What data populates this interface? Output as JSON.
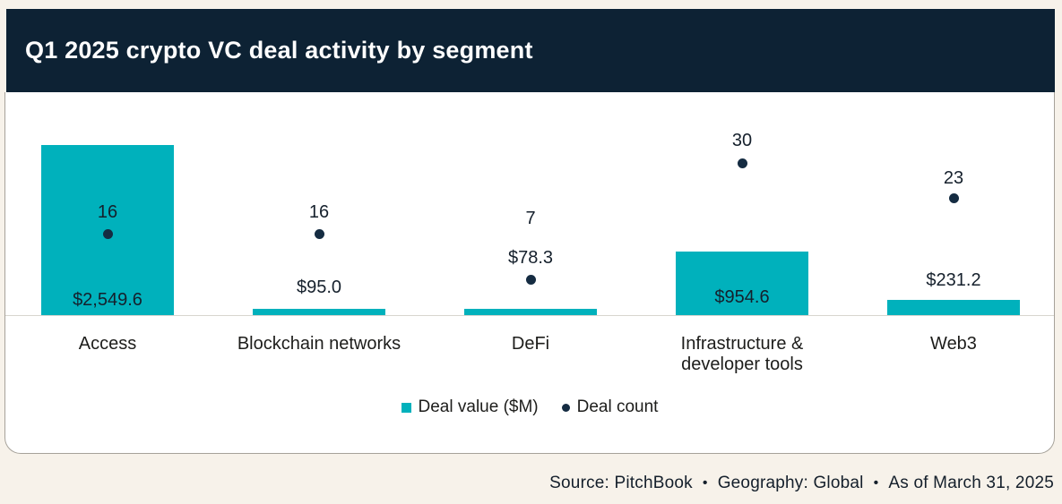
{
  "title": "Q1 2025 crypto VC deal activity by segment",
  "colors": {
    "background": "#f7f2ea",
    "header_navy": "#0d2234",
    "bar_teal": "#00b1bc",
    "dot_navy": "#152c42",
    "card_white": "#ffffff",
    "axis_gray": "#d8d5cf"
  },
  "legend": [
    {
      "label": "Deal value ($M)",
      "marker": "square",
      "color": "#00b1bc"
    },
    {
      "label": "Deal count",
      "marker": "dot",
      "color": "#152c42"
    }
  ],
  "footer": {
    "source": "Source: PitchBook",
    "geography": "Geography: Global",
    "as_of": "As of March 31, 2025",
    "separator": "•"
  },
  "chart_data": {
    "type": "bar",
    "title": "Q1 2025 crypto VC deal activity by segment",
    "categories": [
      "Access",
      "Blockchain networks",
      "DeFi",
      "Infrastructure & developer tools",
      "Web3"
    ],
    "series": [
      {
        "name": "Deal value ($M)",
        "type": "bar",
        "values": [
          2549.6,
          95.0,
          78.3,
          954.6,
          231.2
        ],
        "labels": [
          "$2,549.6",
          "$95.0",
          "$78.3",
          "$954.6",
          "$231.2"
        ],
        "color": "#00b1bc"
      },
      {
        "name": "Deal count",
        "type": "point",
        "values": [
          16,
          16,
          7,
          30,
          23
        ],
        "color": "#152c42"
      }
    ],
    "value_axis": {
      "min": 0,
      "max": 2549.6,
      "visible": false
    },
    "count_axis": {
      "min": 0,
      "max": 30,
      "visible": false
    },
    "grid": false,
    "legend_position": "bottom"
  }
}
